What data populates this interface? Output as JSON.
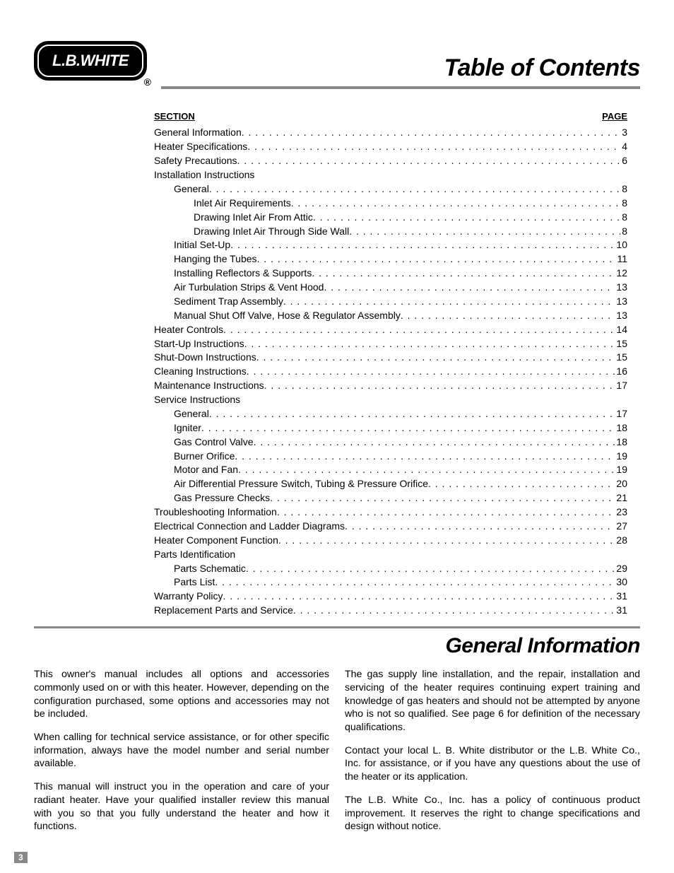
{
  "logo_text": "L.B.WHITE",
  "reg_mark": "®",
  "title": "Table of Contents",
  "toc_header_left": "Section",
  "toc_header_right": "Page",
  "toc": [
    {
      "indent": 0,
      "label": "General Information",
      "page": "3"
    },
    {
      "indent": 0,
      "label": "Heater Specifications",
      "page": "4"
    },
    {
      "indent": 0,
      "label": "Safety Precautions",
      "page": "6"
    },
    {
      "indent": 0,
      "label": "Installation Instructions",
      "page": null
    },
    {
      "indent": 1,
      "label": "General",
      "page": "8"
    },
    {
      "indent": 2,
      "label": "Inlet Air Requirements",
      "page": "8"
    },
    {
      "indent": 2,
      "label": "Drawing Inlet Air From Attic",
      "page": "8"
    },
    {
      "indent": 2,
      "label": "Drawing Inlet Air Through Side Wall",
      "page": "8"
    },
    {
      "indent": 1,
      "label": "Initial Set-Up",
      "page": "10"
    },
    {
      "indent": 1,
      "label": "Hanging the Tubes",
      "page": "11"
    },
    {
      "indent": 1,
      "label": "Installing Reflectors & Supports",
      "page": "12"
    },
    {
      "indent": 1,
      "label": "Air Turbulation Strips & Vent Hood",
      "page": "13"
    },
    {
      "indent": 1,
      "label": "Sediment Trap Assembly",
      "page": "13"
    },
    {
      "indent": 1,
      "label": "Manual Shut Off Valve, Hose & Regulator Assembly",
      "page": "13"
    },
    {
      "indent": 0,
      "label": "Heater Controls",
      "page": "14"
    },
    {
      "indent": 0,
      "label": "Start-Up Instructions",
      "page": "15"
    },
    {
      "indent": 0,
      "label": "Shut-Down Instructions",
      "page": "15"
    },
    {
      "indent": 0,
      "label": "Cleaning Instructions",
      "page": "16"
    },
    {
      "indent": 0,
      "label": "Maintenance Instructions",
      "page": "17"
    },
    {
      "indent": 0,
      "label": "Service Instructions",
      "page": null
    },
    {
      "indent": 1,
      "label": "General",
      "page": "17"
    },
    {
      "indent": 1,
      "label": "Igniter",
      "page": "18"
    },
    {
      "indent": 1,
      "label": "Gas Control Valve",
      "page": "18"
    },
    {
      "indent": 1,
      "label": "Burner Orifice",
      "page": "19"
    },
    {
      "indent": 1,
      "label": "Motor and Fan",
      "page": "19"
    },
    {
      "indent": 1,
      "label": "Air Differential Pressure Switch, Tubing & Pressure Orifice",
      "page": "20"
    },
    {
      "indent": 1,
      "label": "Gas Pressure Checks",
      "page": "21"
    },
    {
      "indent": 0,
      "label": "Troubleshooting Information",
      "page": "23"
    },
    {
      "indent": 0,
      "label": "Electrical Connection and Ladder Diagrams",
      "page": "27"
    },
    {
      "indent": 0,
      "label": "Heater Component Function",
      "page": "28"
    },
    {
      "indent": 0,
      "label": "Parts Identification",
      "page": null
    },
    {
      "indent": 1,
      "label": "Parts Schematic",
      "page": "29"
    },
    {
      "indent": 1,
      "label": "Parts List",
      "page": "30"
    },
    {
      "indent": 0,
      "label": "Warranty Policy",
      "page": "31"
    },
    {
      "indent": 0,
      "label": "Replacement Parts and Service",
      "page": "31"
    }
  ],
  "section2_title": "General Information",
  "col_left": {
    "p1": "This owner's manual includes all options and accessories commonly used on or with this heater.  However, depending on the configuration purchased, some options and accessories may not be included.",
    "p2": "When calling for technical service assistance, or for other specific information, always have the model number and serial number available.",
    "p3": "This manual will instruct you in the operation and care of your radiant heater. Have your qualified installer review this manual with you so that you fully understand the heater and how it functions."
  },
  "col_right": {
    "p1": "The gas supply line installation, and the repair, installation and servicing of the heater requires continuing expert training and knowledge of gas heaters and should not be attempted by anyone who is not so qualified.  See page 6 for definition of the necessary qualifications.",
    "p2": "Contact your local L. B. White distributor or the L.B. White Co., Inc. for assistance, or if you have any questions about the use of the heater or its application.",
    "p3": "The L.B. White Co., Inc. has a policy of continuous product improvement.  It reserves the right to change specifications and design without notice."
  },
  "page_number": "3",
  "colors": {
    "rule": "#888888",
    "text": "#000000",
    "bg": "#ffffff",
    "logo_bg": "#000000",
    "logo_text": "#ffffff"
  }
}
